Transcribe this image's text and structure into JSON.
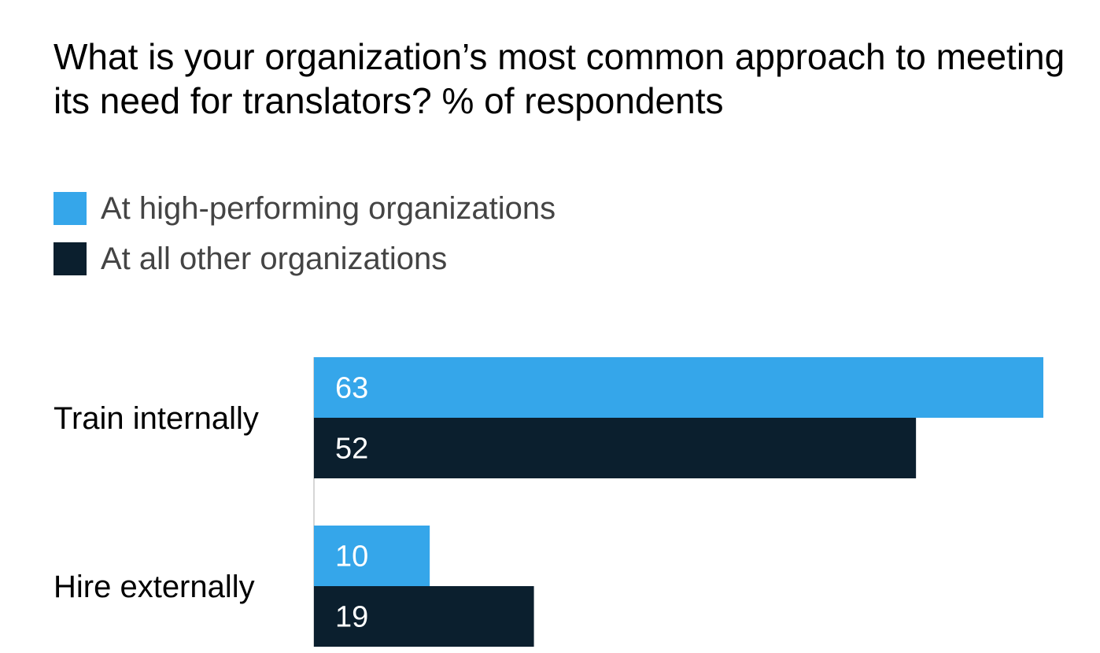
{
  "chart_data": {
    "type": "bar",
    "orientation": "horizontal",
    "title": "What is your organization’s most common approach to meeting its need for translators? % of respondents",
    "categories": [
      "Train internally",
      "Hire externally"
    ],
    "series": [
      {
        "name": "At high-performing organizations",
        "values": [
          63,
          10
        ],
        "color": "#35a6ea"
      },
      {
        "name": "At all other organizations",
        "values": [
          52,
          19
        ],
        "color": "#0b1f2e"
      }
    ],
    "xlim": [
      0,
      63
    ],
    "grid": false,
    "legend_placement": "top-left",
    "data_labels": true
  },
  "colors": {
    "axis_line": "#c8c8c8"
  }
}
